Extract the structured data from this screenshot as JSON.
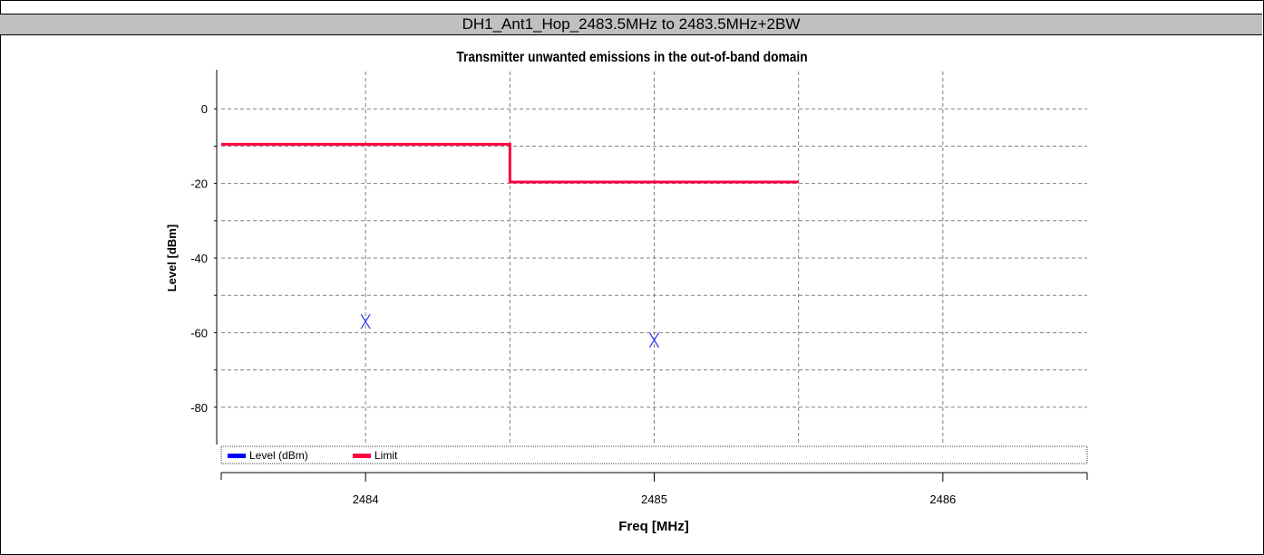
{
  "header": {
    "title": "DH1_Ant1_Hop_2483.5MHz to 2483.5MHz+2BW"
  },
  "chart_data": {
    "type": "line",
    "title": "Transmitter unwanted emissions in the out-of-band domain",
    "xlabel": "Freq [MHz]",
    "ylabel": "Level [dBm]",
    "xlim": [
      2483.5,
      2486.5
    ],
    "ylim": [
      -90,
      10
    ],
    "x_ticks": [
      2484,
      2485,
      2486
    ],
    "y_ticks": [
      0,
      -20,
      -40,
      -60,
      -80
    ],
    "x_grid": [
      2484,
      2484.5,
      2485,
      2485.5,
      2486
    ],
    "y_grid": [
      0,
      -10,
      -20,
      -30,
      -40,
      -50,
      -60,
      -70,
      -80
    ],
    "grid": true,
    "legend_position": "bottom",
    "series": [
      {
        "name": "Level (dBm)",
        "color": "#0000ff",
        "marker": "x",
        "points": [
          {
            "x": 2484.0,
            "y": -57
          },
          {
            "x": 2485.0,
            "y": -62
          }
        ]
      },
      {
        "name": "Limit",
        "color": "#ff0040",
        "marker": "none",
        "points": [
          {
            "x": 2483.5,
            "y": -9.5
          },
          {
            "x": 2484.5,
            "y": -9.5
          },
          {
            "x": 2484.5,
            "y": -19.6
          },
          {
            "x": 2485.5,
            "y": -19.6
          }
        ]
      }
    ]
  }
}
